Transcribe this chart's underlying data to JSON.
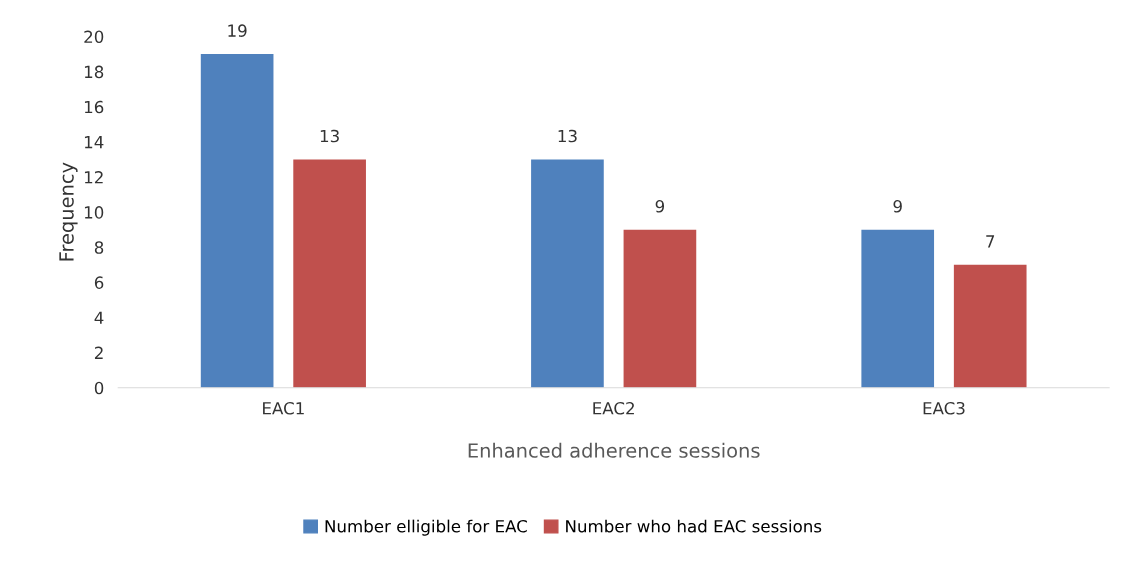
{
  "chart_data": {
    "type": "bar",
    "xlabel": "Enhanced adherence sessions",
    "ylabel": "Frequency",
    "categories": [
      "EAC1",
      "EAC2",
      "EAC3"
    ],
    "series": [
      {
        "name": "Number elligible for EAC",
        "color": "#4f81bd",
        "values": [
          19,
          13,
          9
        ]
      },
      {
        "name": "Number who had EAC sessions",
        "color": "#c0504d",
        "values": [
          13,
          9,
          7
        ]
      }
    ],
    "ylim": [
      0,
      20
    ],
    "yticks": [
      0,
      2,
      4,
      6,
      8,
      10,
      12,
      14,
      16,
      18,
      20
    ],
    "grid": false,
    "legend": "bottom",
    "data_labels": true
  }
}
